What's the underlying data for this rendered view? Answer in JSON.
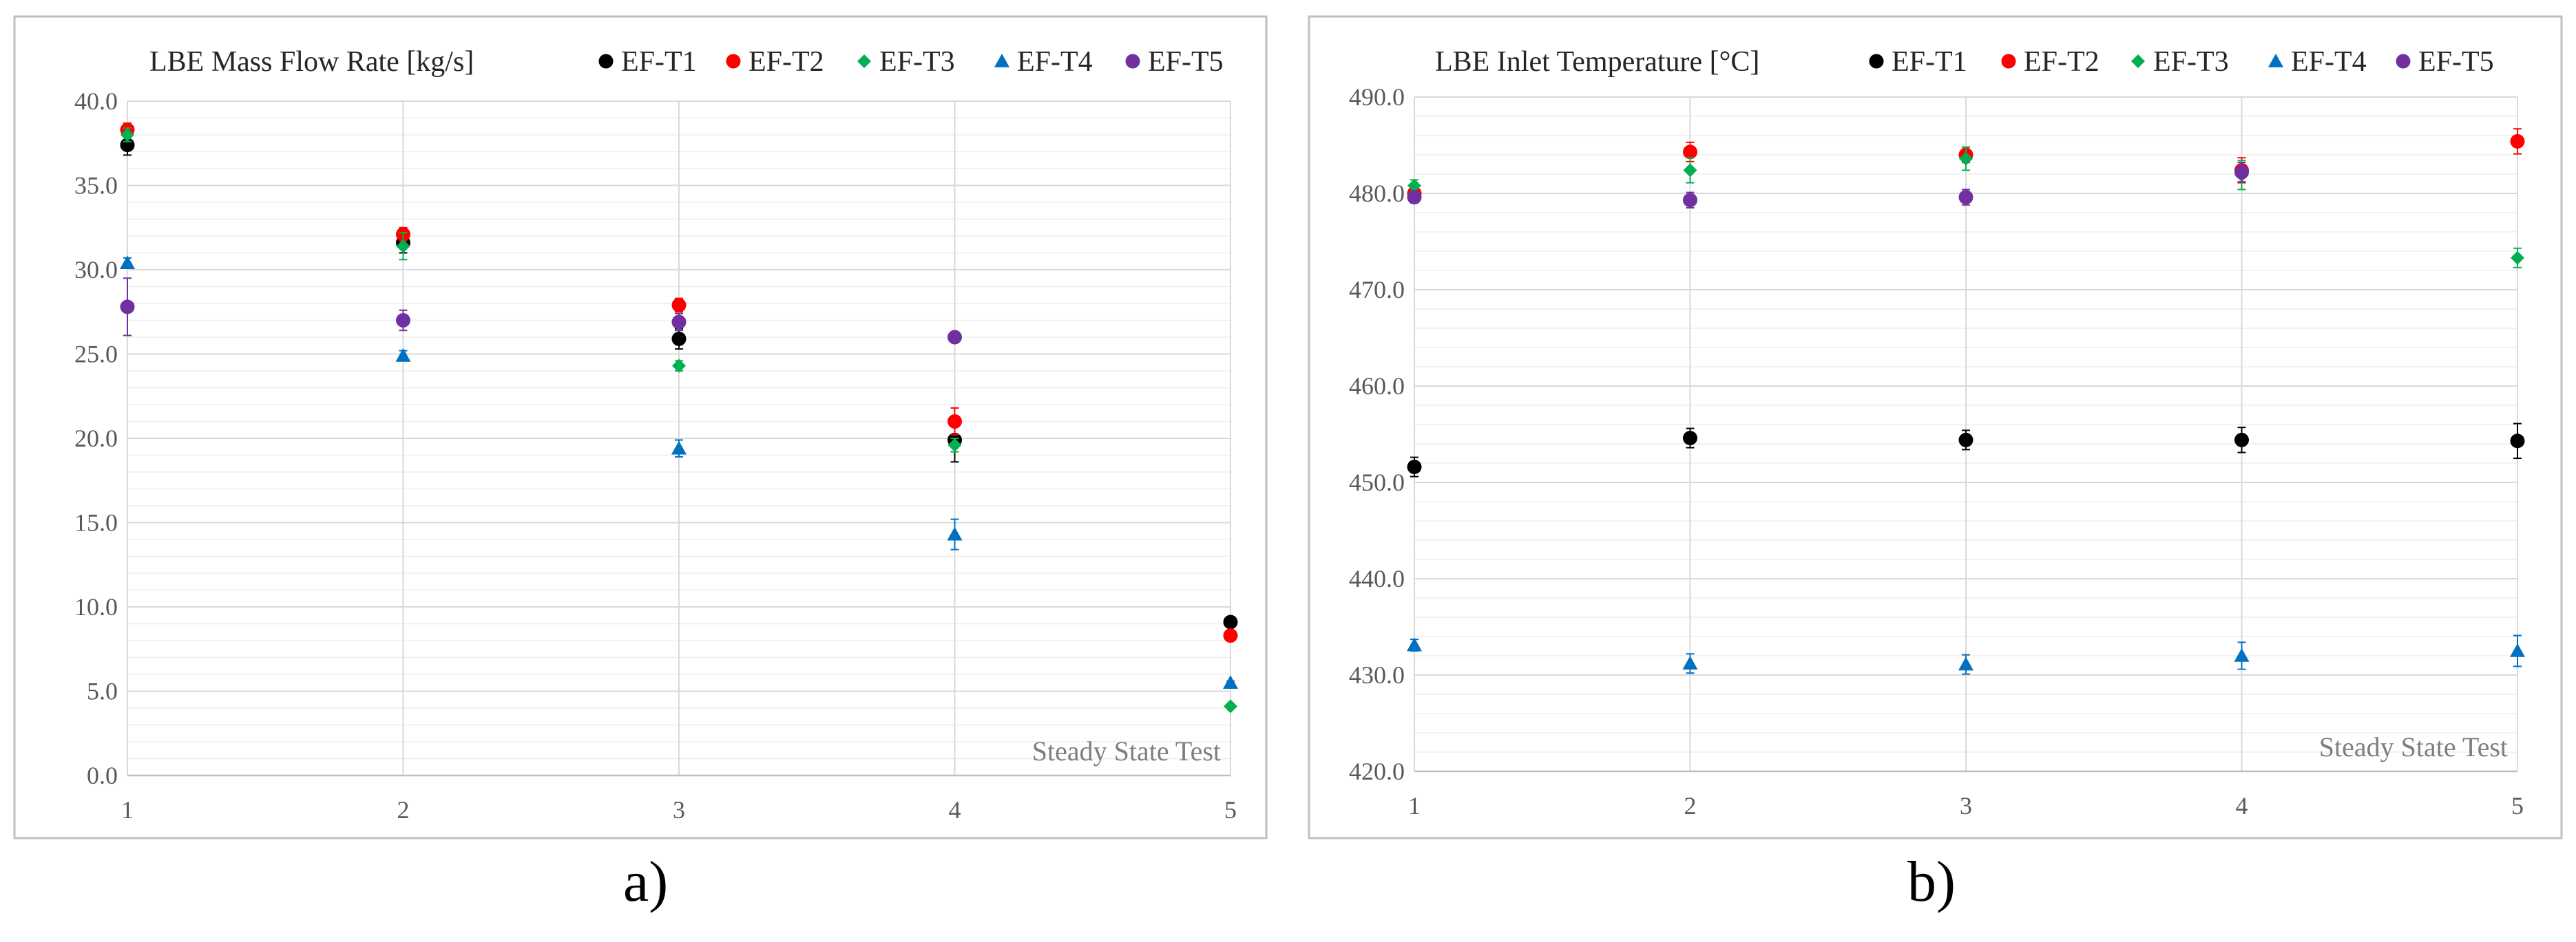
{
  "series_meta": [
    {
      "name": "EF-T1",
      "color": "#000000",
      "marker": "circle"
    },
    {
      "name": "EF-T2",
      "color": "#ff0000",
      "marker": "circle"
    },
    {
      "name": "EF-T3",
      "color": "#00b050",
      "marker": "diamond"
    },
    {
      "name": "EF-T4",
      "color": "#0070c0",
      "marker": "triangle"
    },
    {
      "name": "EF-T5",
      "color": "#7030a0",
      "marker": "circle"
    }
  ],
  "captions": {
    "a": "a)",
    "b": "b)"
  },
  "chart_data": [
    {
      "type": "scatter",
      "title": "LBE Mass Flow Rate [kg/s]",
      "annotation": "Steady State Test",
      "xlabel": "",
      "ylabel": "",
      "xlim": [
        1,
        5
      ],
      "ylim": [
        0,
        40
      ],
      "ystep": 5,
      "yminor": 1,
      "ydecimals": 1,
      "xticks": [
        1,
        2,
        3,
        4,
        5
      ],
      "grid": true,
      "legend": "top",
      "series": [
        {
          "name": "EF-T1",
          "x": [
            1,
            2,
            3,
            4,
            5
          ],
          "y": [
            37.4,
            31.6,
            25.9,
            19.9,
            9.1
          ],
          "err": [
            0.6,
            0.6,
            0.6,
            1.3,
            0.2
          ]
        },
        {
          "name": "EF-T2",
          "x": [
            1,
            2,
            3,
            4,
            5
          ],
          "y": [
            38.3,
            32.1,
            27.9,
            21.0,
            8.3
          ],
          "err": [
            0.4,
            0.4,
            0.4,
            0.8,
            0.2
          ]
        },
        {
          "name": "EF-T3",
          "x": [
            1,
            2,
            3,
            4,
            5
          ],
          "y": [
            38.0,
            31.4,
            24.3,
            19.6,
            4.1
          ],
          "err": [
            0.4,
            0.8,
            0.3,
            0.4,
            0.1
          ]
        },
        {
          "name": "EF-T4",
          "x": [
            1,
            2,
            3,
            4,
            5
          ],
          "y": [
            30.4,
            24.9,
            19.4,
            14.3,
            5.5
          ],
          "err": [
            0.3,
            0.3,
            0.5,
            0.9,
            0.1
          ]
        },
        {
          "name": "EF-T5",
          "x": [
            1,
            2,
            3,
            4,
            5
          ],
          "y": [
            27.8,
            27.0,
            26.9,
            26.0,
            null
          ],
          "err": [
            1.7,
            0.6,
            0.5,
            0.3,
            0
          ]
        }
      ]
    },
    {
      "type": "scatter",
      "title": "LBE Inlet Temperature [°C]",
      "annotation": "Steady State Test",
      "xlabel": "",
      "ylabel": "",
      "xlim": [
        1,
        5
      ],
      "ylim": [
        420,
        490
      ],
      "ystep": 10,
      "yminor": 2,
      "ydecimals": 1,
      "xticks": [
        1,
        2,
        3,
        4,
        5
      ],
      "grid": true,
      "legend": "top",
      "series": [
        {
          "name": "EF-T1",
          "x": [
            1,
            2,
            3,
            4,
            5
          ],
          "y": [
            451.6,
            454.6,
            454.4,
            454.4,
            454.3
          ],
          "err": [
            1.0,
            1.0,
            1.0,
            1.3,
            1.8
          ]
        },
        {
          "name": "EF-T2",
          "x": [
            1,
            2,
            3,
            4,
            5
          ],
          "y": [
            480.0,
            484.3,
            484.0,
            482.4,
            485.4
          ],
          "err": [
            0.5,
            1.0,
            0.8,
            1.3,
            1.3
          ]
        },
        {
          "name": "EF-T3",
          "x": [
            1,
            2,
            3,
            4,
            5
          ],
          "y": [
            480.8,
            482.4,
            483.6,
            481.9,
            473.3
          ],
          "err": [
            0.6,
            1.3,
            1.2,
            1.5,
            1.0
          ]
        },
        {
          "name": "EF-T4",
          "x": [
            1,
            2,
            3,
            4,
            5
          ],
          "y": [
            433.1,
            431.2,
            431.1,
            432.0,
            432.5
          ],
          "err": [
            0.6,
            1.0,
            1.0,
            1.4,
            1.6
          ]
        },
        {
          "name": "EF-T5",
          "x": [
            1,
            2,
            3,
            4
          ],
          "y": [
            479.6,
            479.3,
            479.6,
            482.2
          ],
          "err": [
            0.6,
            0.8,
            0.8,
            1.0
          ]
        }
      ]
    }
  ]
}
